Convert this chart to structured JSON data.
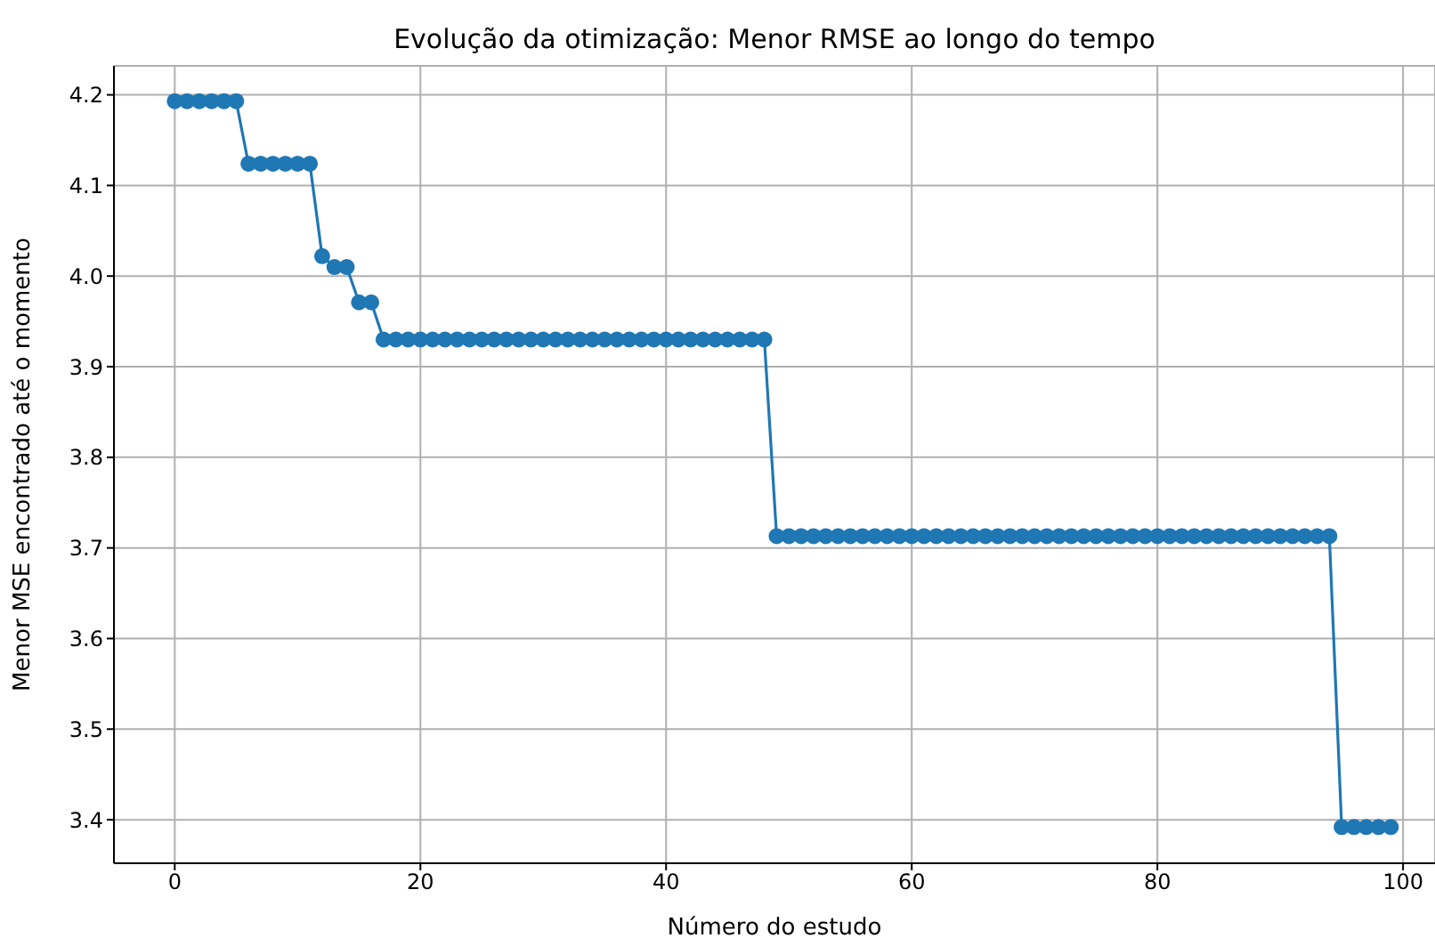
{
  "chart_data": {
    "type": "line",
    "title": "Evolução da otimização: Menor RMSE ao longo do tempo",
    "xlabel": "Número do estudo",
    "ylabel": "Menor MSE encontrado até o momento",
    "x": [
      0,
      1,
      2,
      3,
      4,
      5,
      6,
      7,
      8,
      9,
      10,
      11,
      12,
      13,
      14,
      15,
      16,
      17,
      18,
      19,
      20,
      21,
      22,
      23,
      24,
      25,
      26,
      27,
      28,
      29,
      30,
      31,
      32,
      33,
      34,
      35,
      36,
      37,
      38,
      39,
      40,
      41,
      42,
      43,
      44,
      45,
      46,
      47,
      48,
      49,
      50,
      51,
      52,
      53,
      54,
      55,
      56,
      57,
      58,
      59,
      60,
      61,
      62,
      63,
      64,
      65,
      66,
      67,
      68,
      69,
      70,
      71,
      72,
      73,
      74,
      75,
      76,
      77,
      78,
      79,
      80,
      81,
      82,
      83,
      84,
      85,
      86,
      87,
      88,
      89,
      90,
      91,
      92,
      93,
      94,
      95,
      96,
      97,
      98,
      99
    ],
    "series": [
      {
        "color": "#1f77b4",
        "values": [
          4.193,
          4.193,
          4.193,
          4.193,
          4.193,
          4.193,
          4.124,
          4.124,
          4.124,
          4.124,
          4.124,
          4.124,
          4.022,
          4.01,
          4.01,
          3.971,
          3.971,
          3.93,
          3.93,
          3.93,
          3.93,
          3.93,
          3.93,
          3.93,
          3.93,
          3.93,
          3.93,
          3.93,
          3.93,
          3.93,
          3.93,
          3.93,
          3.93,
          3.93,
          3.93,
          3.93,
          3.93,
          3.93,
          3.93,
          3.93,
          3.93,
          3.93,
          3.93,
          3.93,
          3.93,
          3.93,
          3.93,
          3.93,
          3.93,
          3.713,
          3.713,
          3.713,
          3.713,
          3.713,
          3.713,
          3.713,
          3.713,
          3.713,
          3.713,
          3.713,
          3.713,
          3.713,
          3.713,
          3.713,
          3.713,
          3.713,
          3.713,
          3.713,
          3.713,
          3.713,
          3.713,
          3.713,
          3.713,
          3.713,
          3.713,
          3.713,
          3.713,
          3.713,
          3.713,
          3.713,
          3.713,
          3.713,
          3.713,
          3.713,
          3.713,
          3.713,
          3.713,
          3.713,
          3.713,
          3.713,
          3.713,
          3.713,
          3.713,
          3.713,
          3.713,
          3.392,
          3.392,
          3.392,
          3.392,
          3.392
        ]
      }
    ],
    "xlim": [
      -4.95,
      102.6
    ],
    "xticks": [
      0,
      20,
      40,
      60,
      80,
      100
    ],
    "ylim": [
      3.352,
      4.232
    ],
    "yticks": [
      {
        "value": 3.4,
        "label": "3.4"
      },
      {
        "value": 3.5,
        "label": "3.5"
      },
      {
        "value": 3.6,
        "label": "3.6"
      },
      {
        "value": 3.7,
        "label": "3.7"
      },
      {
        "value": 3.8,
        "label": "3.8"
      },
      {
        "value": 3.9,
        "label": "3.9"
      },
      {
        "value": 4.0,
        "label": "4.0"
      },
      {
        "value": 4.1,
        "label": "4.1"
      },
      {
        "value": 4.2,
        "label": "4.2"
      }
    ],
    "grid": true,
    "marker": "circle",
    "line_style": "solid",
    "legend": false
  }
}
